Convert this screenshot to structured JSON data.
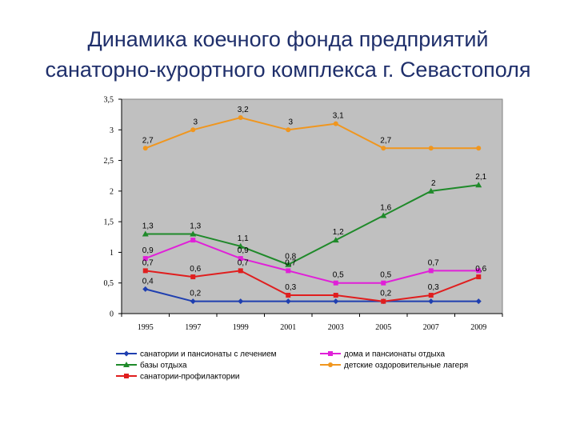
{
  "title_lines": [
    "Динамика коечного фонда предприятий",
    "санаторно-курортного комплекса г. Севастополя"
  ],
  "chart_data": {
    "type": "line",
    "title": "",
    "xlabel": "",
    "ylabel": "",
    "categories": [
      "1995",
      "1997",
      "1999",
      "2001",
      "2003",
      "2005",
      "2007",
      "2009"
    ],
    "ylim": [
      0,
      3.5
    ],
    "yticks": [
      "0",
      "0,5",
      "1",
      "1,5",
      "2",
      "2,5",
      "3",
      "3,5"
    ],
    "ytick_values": [
      0,
      0.5,
      1,
      1.5,
      2,
      2.5,
      3,
      3.5
    ],
    "grid": false,
    "legend_position": "bottom",
    "series": [
      {
        "name": "санатории и пансионаты с лечением",
        "color": "#1f3fb0",
        "marker": "diamond",
        "values": [
          0.4,
          0.2,
          0.2,
          0.2,
          0.2,
          0.2,
          0.2,
          0.2
        ],
        "labels": [
          "0,4",
          "0,2",
          "",
          "",
          "",
          "",
          "",
          ""
        ]
      },
      {
        "name": "дома и пансионаты отдыха",
        "color": "#e020d8",
        "marker": "square",
        "values": [
          0.9,
          1.2,
          0.9,
          0.7,
          0.5,
          0.5,
          0.7,
          0.7
        ],
        "labels": [
          "0,9",
          "",
          "0,9",
          "0,7",
          "0,5",
          "0,5",
          "0,7",
          ""
        ]
      },
      {
        "name": "базы отдыха",
        "color": "#1f8a2a",
        "marker": "triangle",
        "values": [
          1.3,
          1.3,
          1.1,
          0.8,
          1.2,
          1.6,
          2.0,
          2.1
        ],
        "labels": [
          "1,3",
          "1,3",
          "1,1",
          "0,8",
          "1,2",
          "1,6",
          "2",
          "2,1"
        ]
      },
      {
        "name": "детские оздоровительные лагеря",
        "color": "#f0961e",
        "marker": "circle",
        "values": [
          2.7,
          3.0,
          3.2,
          3.0,
          3.1,
          2.7,
          2.7,
          2.7
        ],
        "labels": [
          "2,7",
          "3",
          "3,2",
          "3",
          "3,1",
          "2,7",
          "",
          ""
        ]
      },
      {
        "name": "санатории-профилактории",
        "color": "#e01e1e",
        "marker": "square",
        "values": [
          0.7,
          0.6,
          0.7,
          0.3,
          0.3,
          0.2,
          0.3,
          0.6
        ],
        "labels": [
          "0,7",
          "0,6",
          "0,7",
          "0,3",
          "",
          "0,2",
          "0,3",
          "0,6"
        ]
      }
    ],
    "legend_order": [
      0,
      1,
      2,
      3,
      4
    ]
  }
}
